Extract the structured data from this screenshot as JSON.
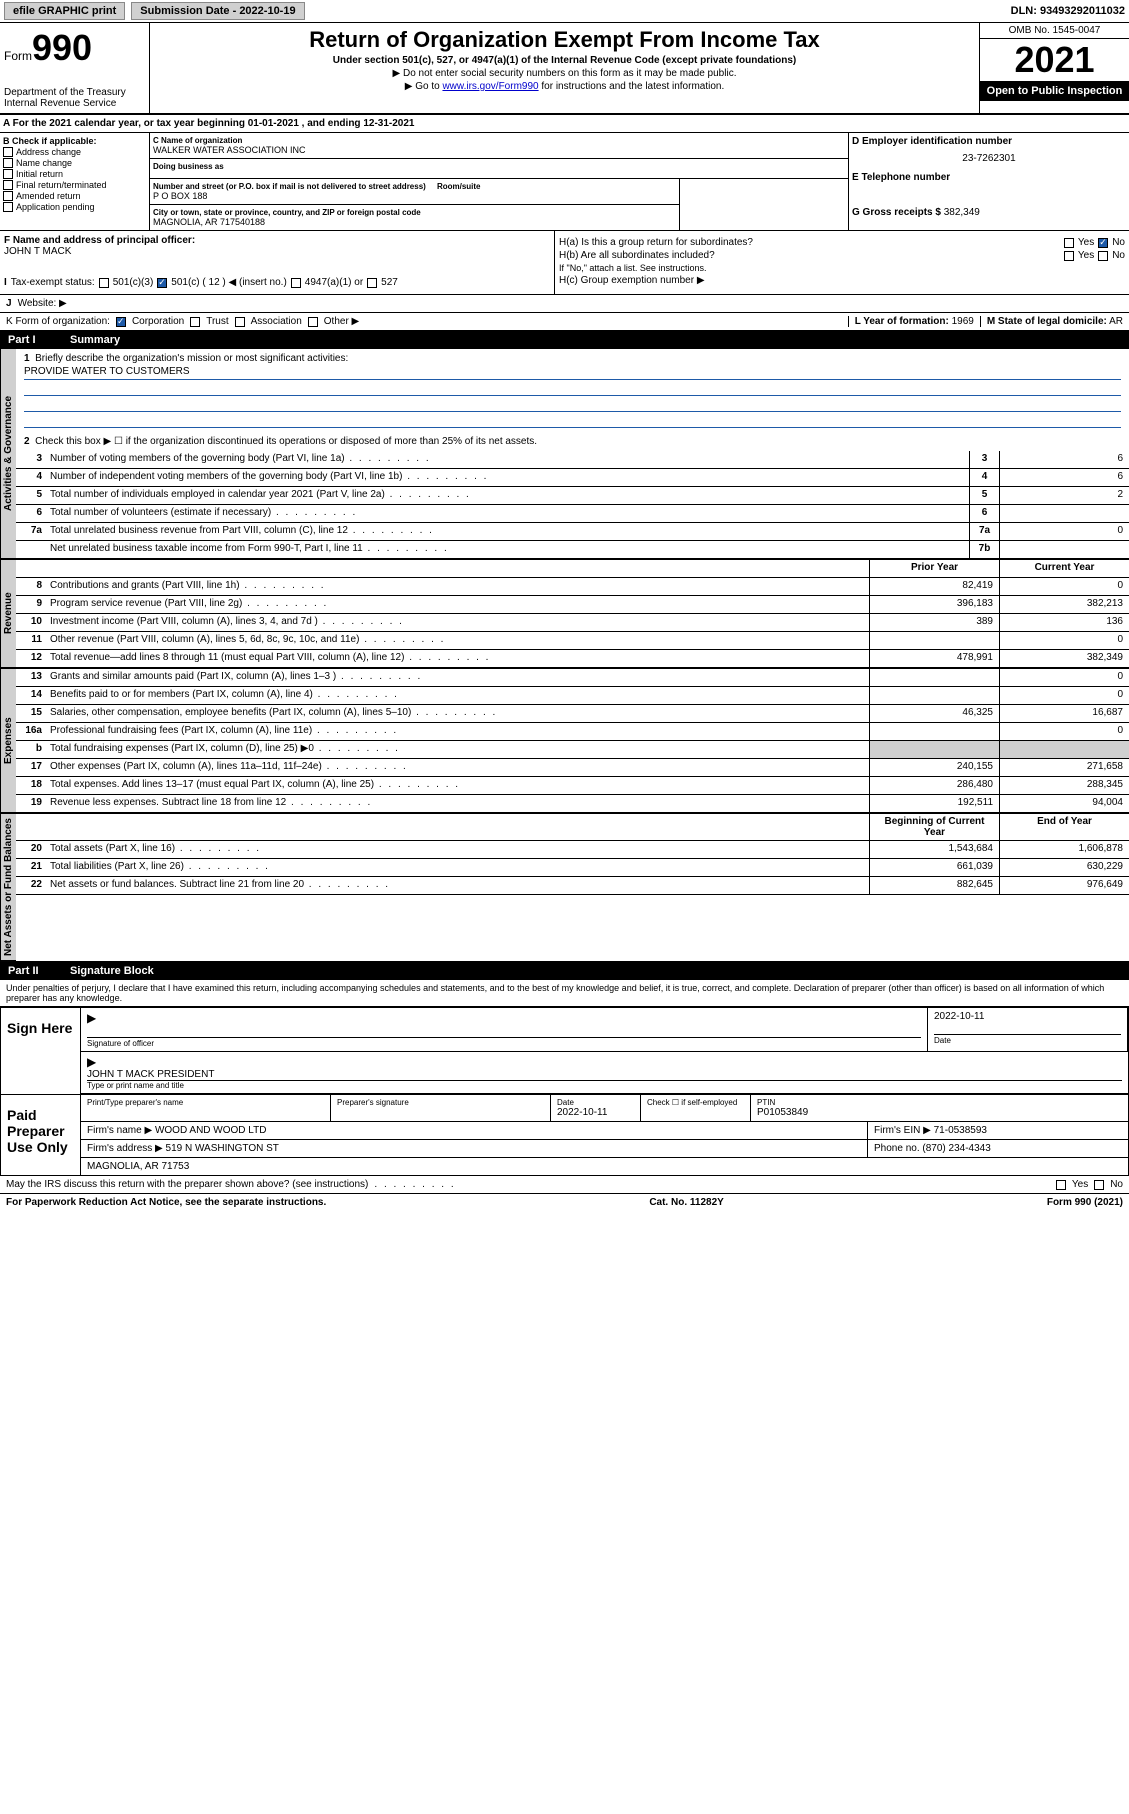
{
  "topbar": {
    "efile": "efile GRAPHIC print",
    "submission_label": "Submission Date - 2022-10-19",
    "dln": "DLN: 93493292011032"
  },
  "header": {
    "form_word": "Form",
    "form_num": "990",
    "title": "Return of Organization Exempt From Income Tax",
    "subtitle": "Under section 501(c), 527, or 4947(a)(1) of the Internal Revenue Code (except private foundations)",
    "line1": "▶ Do not enter social security numbers on this form as it may be made public.",
    "line2_pre": "▶ Go to ",
    "line2_link": "www.irs.gov/Form990",
    "line2_post": " for instructions and the latest information.",
    "dept": "Department of the Treasury",
    "irs": "Internal Revenue Service",
    "omb": "OMB No. 1545-0047",
    "year": "2021",
    "open_public": "Open to Public Inspection"
  },
  "line_a": "A For the 2021 calendar year, or tax year beginning 01-01-2021   , and ending 12-31-2021",
  "box_b": {
    "title": "B Check if applicable:",
    "items": [
      "Address change",
      "Name change",
      "Initial return",
      "Final return/terminated",
      "Amended return",
      "Application pending"
    ]
  },
  "box_c": {
    "name_lbl": "C Name of organization",
    "name": "WALKER WATER ASSOCIATION INC",
    "dba_lbl": "Doing business as",
    "dba": "",
    "addr_lbl": "Number and street (or P.O. box if mail is not delivered to street address)",
    "room_lbl": "Room/suite",
    "addr": "P O BOX 188",
    "city_lbl": "City or town, state or province, country, and ZIP or foreign postal code",
    "city": "MAGNOLIA, AR   717540188"
  },
  "box_d": {
    "lbl": "D Employer identification number",
    "val": "23-7262301"
  },
  "box_e": {
    "lbl": "E Telephone number",
    "val": ""
  },
  "box_g": {
    "lbl": "G Gross receipts $",
    "val": "382,349"
  },
  "box_f": {
    "lbl": "F Name and address of principal officer:",
    "name": "JOHN T MACK"
  },
  "box_h": {
    "ha": "H(a)  Is this a group return for subordinates?",
    "hb": "H(b)  Are all subordinates included?",
    "hb_note": "If \"No,\" attach a list. See instructions.",
    "hc": "H(c)  Group exemption number ▶",
    "yes": "Yes",
    "no": "No"
  },
  "box_i": {
    "lbl": "Tax-exempt status:",
    "opts": [
      "501(c)(3)",
      "501(c) ( 12 ) ◀ (insert no.)",
      "4947(a)(1) or",
      "527"
    ]
  },
  "box_j": "Website: ▶",
  "box_k": {
    "lbl": "K Form of organization:",
    "opts": [
      "Corporation",
      "Trust",
      "Association",
      "Other ▶"
    ]
  },
  "box_l": {
    "lbl": "L Year of formation:",
    "val": "1969"
  },
  "box_m": {
    "lbl": "M State of legal domicile:",
    "val": "AR"
  },
  "part1": {
    "num": "Part I",
    "title": "Summary"
  },
  "summary": {
    "q1": "Briefly describe the organization's mission or most significant activities:",
    "mission": "PROVIDE WATER TO CUSTOMERS",
    "q2": "Check this box ▶ ☐  if the organization discontinued its operations or disposed of more than 25% of its net assets.",
    "rows_gov": [
      {
        "n": "3",
        "d": "Number of voting members of the governing body (Part VI, line 1a)",
        "b": "3",
        "v": "6"
      },
      {
        "n": "4",
        "d": "Number of independent voting members of the governing body (Part VI, line 1b)",
        "b": "4",
        "v": "6"
      },
      {
        "n": "5",
        "d": "Total number of individuals employed in calendar year 2021 (Part V, line 2a)",
        "b": "5",
        "v": "2"
      },
      {
        "n": "6",
        "d": "Total number of volunteers (estimate if necessary)",
        "b": "6",
        "v": ""
      },
      {
        "n": "7a",
        "d": "Total unrelated business revenue from Part VIII, column (C), line 12",
        "b": "7a",
        "v": "0"
      },
      {
        "n": "",
        "d": "Net unrelated business taxable income from Form 990-T, Part I, line 11",
        "b": "7b",
        "v": ""
      }
    ],
    "col_prior": "Prior Year",
    "col_current": "Current Year",
    "rows_rev": [
      {
        "n": "8",
        "d": "Contributions and grants (Part VIII, line 1h)",
        "p": "82,419",
        "c": "0"
      },
      {
        "n": "9",
        "d": "Program service revenue (Part VIII, line 2g)",
        "p": "396,183",
        "c": "382,213"
      },
      {
        "n": "10",
        "d": "Investment income (Part VIII, column (A), lines 3, 4, and 7d )",
        "p": "389",
        "c": "136"
      },
      {
        "n": "11",
        "d": "Other revenue (Part VIII, column (A), lines 5, 6d, 8c, 9c, 10c, and 11e)",
        "p": "",
        "c": "0"
      },
      {
        "n": "12",
        "d": "Total revenue—add lines 8 through 11 (must equal Part VIII, column (A), line 12)",
        "p": "478,991",
        "c": "382,349"
      }
    ],
    "rows_exp": [
      {
        "n": "13",
        "d": "Grants and similar amounts paid (Part IX, column (A), lines 1–3 )",
        "p": "",
        "c": "0"
      },
      {
        "n": "14",
        "d": "Benefits paid to or for members (Part IX, column (A), line 4)",
        "p": "",
        "c": "0"
      },
      {
        "n": "15",
        "d": "Salaries, other compensation, employee benefits (Part IX, column (A), lines 5–10)",
        "p": "46,325",
        "c": "16,687"
      },
      {
        "n": "16a",
        "d": "Professional fundraising fees (Part IX, column (A), line 11e)",
        "p": "",
        "c": "0"
      },
      {
        "n": "b",
        "d": "Total fundraising expenses (Part IX, column (D), line 25) ▶0",
        "p": "shade",
        "c": "shade"
      },
      {
        "n": "17",
        "d": "Other expenses (Part IX, column (A), lines 11a–11d, 11f–24e)",
        "p": "240,155",
        "c": "271,658"
      },
      {
        "n": "18",
        "d": "Total expenses. Add lines 13–17 (must equal Part IX, column (A), line 25)",
        "p": "286,480",
        "c": "288,345"
      },
      {
        "n": "19",
        "d": "Revenue less expenses. Subtract line 18 from line 12",
        "p": "192,511",
        "c": "94,004"
      }
    ],
    "col_begin": "Beginning of Current Year",
    "col_end": "End of Year",
    "rows_net": [
      {
        "n": "20",
        "d": "Total assets (Part X, line 16)",
        "p": "1,543,684",
        "c": "1,606,878"
      },
      {
        "n": "21",
        "d": "Total liabilities (Part X, line 26)",
        "p": "661,039",
        "c": "630,229"
      },
      {
        "n": "22",
        "d": "Net assets or fund balances. Subtract line 21 from line 20",
        "p": "882,645",
        "c": "976,649"
      }
    ]
  },
  "vlabels": {
    "gov": "Activities & Governance",
    "rev": "Revenue",
    "exp": "Expenses",
    "net": "Net Assets or Fund Balances"
  },
  "part2": {
    "num": "Part II",
    "title": "Signature Block"
  },
  "penalties": "Under penalties of perjury, I declare that I have examined this return, including accompanying schedules and statements, and to the best of my knowledge and belief, it is true, correct, and complete. Declaration of preparer (other than officer) is based on all information of which preparer has any knowledge.",
  "sign_here": {
    "label": "Sign Here",
    "sig_officer": "Signature of officer",
    "date_lbl": "Date",
    "date": "2022-10-11",
    "name_title": "JOHN T MACK PRESIDENT",
    "name_lbl": "Type or print name and title"
  },
  "paid_prep": {
    "label": "Paid Preparer Use Only",
    "cols": [
      "Print/Type preparer's name",
      "Preparer's signature",
      "Date",
      "",
      "PTIN"
    ],
    "date": "2022-10-11",
    "check_lbl": "Check ☐ if self-employed",
    "ptin": "P01053849",
    "firm_name_lbl": "Firm's name      ▶",
    "firm_name": "WOOD AND WOOD LTD",
    "firm_ein_lbl": "Firm's EIN ▶",
    "firm_ein": "71-0538593",
    "firm_addr_lbl": "Firm's address ▶",
    "firm_addr1": "519 N WASHINGTON ST",
    "firm_addr2": "MAGNOLIA, AR  71753",
    "phone_lbl": "Phone no.",
    "phone": "(870) 234-4343"
  },
  "may_irs": "May the IRS discuss this return with the preparer shown above? (see instructions)",
  "footer": {
    "left": "For Paperwork Reduction Act Notice, see the separate instructions.",
    "mid": "Cat. No. 11282Y",
    "right": "Form 990 (2021)"
  }
}
